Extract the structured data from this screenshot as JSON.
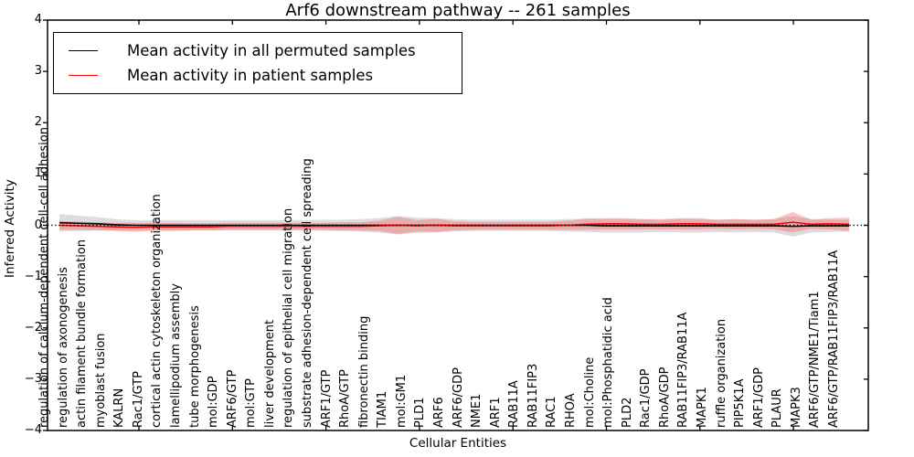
{
  "chart_data": {
    "type": "line",
    "title": "Arf6 downstream pathway -- 261 samples",
    "xlabel": "Cellular Entities",
    "ylabel": "Inferred Activity",
    "ylim": [
      -4,
      4
    ],
    "ytick_values": [
      4,
      3,
      2,
      1,
      0,
      -1,
      -2,
      -3,
      -4
    ],
    "ytick_labels": [
      "4",
      "3",
      "2",
      "1",
      "0",
      "−1",
      "−2",
      "−3",
      "−4"
    ],
    "grid": false,
    "legend_position": "upper left",
    "band_meaning": "shaded region = mean ± std around each line",
    "zero_line": {
      "value": 0,
      "style": "dotted",
      "color": "#000000"
    },
    "categories": [
      "regulation of calcium-dependent cell-cell adhesion",
      "regulation of axonogenesis",
      "actin filament bundle formation",
      "myoblast fusion",
      "KALRN",
      "Rac1/GTP",
      "cortical actin cytoskeleton organization",
      "lamellipodium assembly",
      "tube morphogenesis",
      "mol:GDP",
      "ARF6/GTP",
      "mol:GTP",
      "liver development",
      "regulation of epithelial cell migration",
      "substrate adhesion-dependent cell spreading",
      "ARF1/GTP",
      "RhoA/GTP",
      "fibronectin binding",
      "TIAM1",
      "mol:GM1",
      "PLD1",
      "ARF6",
      "ARF6/GDP",
      "NME1",
      "ARF1",
      "RAB11A",
      "RAB11FIP3",
      "RAC1",
      "RHOA",
      "mol:Choline",
      "mol:Phosphatidic acid",
      "PLD2",
      "Rac1/GDP",
      "RhoA/GDP",
      "RAB11FIP3/RAB11A",
      "MAPK1",
      "ruffle organization",
      "PIP5K1A",
      "ARF1/GDP",
      "PLAUR",
      "MAPK3",
      "ARF6/GTP/NME1/Tiam1",
      "ARF6/GTP/RAB11FIP3/RAB11A"
    ],
    "series": [
      {
        "name": "permuted",
        "legend_label": "Mean activity in all permuted samples",
        "line_color": "#000000",
        "band_color": "#999999",
        "band_opacity": 0.33,
        "mean": [
          0.05,
          0.04,
          0.03,
          0.01,
          0,
          0,
          0,
          0,
          0,
          0,
          0,
          0,
          0,
          0,
          0,
          0,
          0,
          0,
          0,
          0,
          0,
          0,
          0,
          0,
          0,
          0,
          0,
          0,
          0,
          -0.01,
          -0.01,
          -0.01,
          -0.01,
          -0.01,
          -0.01,
          -0.01,
          -0.01,
          -0.01,
          -0.01,
          -0.02,
          -0.01,
          -0.01,
          -0.01
        ],
        "std": [
          0.17,
          0.15,
          0.13,
          0.11,
          0.1,
          0.1,
          0.1,
          0.1,
          0.1,
          0.1,
          0.1,
          0.1,
          0.1,
          0.1,
          0.11,
          0.11,
          0.12,
          0.14,
          0.18,
          0.15,
          0.14,
          0.12,
          0.11,
          0.11,
          0.11,
          0.11,
          0.11,
          0.12,
          0.13,
          0.13,
          0.13,
          0.13,
          0.12,
          0.13,
          0.13,
          0.12,
          0.13,
          0.12,
          0.13,
          0.2,
          0.13,
          0.12,
          0.12
        ]
      },
      {
        "name": "patient",
        "legend_label": "Mean activity in patient samples",
        "line_color": "#ff0000",
        "band_color": "#ff4040",
        "band_opacity": 0.3,
        "mean": [
          0,
          -0.01,
          -0.02,
          -0.03,
          -0.04,
          -0.03,
          -0.03,
          -0.03,
          -0.03,
          -0.02,
          -0.02,
          -0.02,
          -0.02,
          -0.02,
          -0.02,
          -0.02,
          -0.02,
          -0.01,
          0,
          -0.01,
          0,
          -0.01,
          -0.01,
          -0.01,
          -0.01,
          -0.01,
          -0.01,
          0,
          0.02,
          0.03,
          0.03,
          0.02,
          0.02,
          0.03,
          0.03,
          0.02,
          0.02,
          0.02,
          0.02,
          0.06,
          0.02,
          0.03,
          0.02
        ],
        "std": [
          0.09,
          0.08,
          0.08,
          0.08,
          0.09,
          0.08,
          0.08,
          0.07,
          0.07,
          0.07,
          0.07,
          0.07,
          0.07,
          0.07,
          0.07,
          0.08,
          0.08,
          0.1,
          0.17,
          0.11,
          0.13,
          0.09,
          0.08,
          0.08,
          0.08,
          0.08,
          0.08,
          0.09,
          0.11,
          0.11,
          0.11,
          0.1,
          0.1,
          0.11,
          0.11,
          0.09,
          0.1,
          0.09,
          0.1,
          0.2,
          0.09,
          0.11,
          0.13
        ]
      }
    ]
  }
}
